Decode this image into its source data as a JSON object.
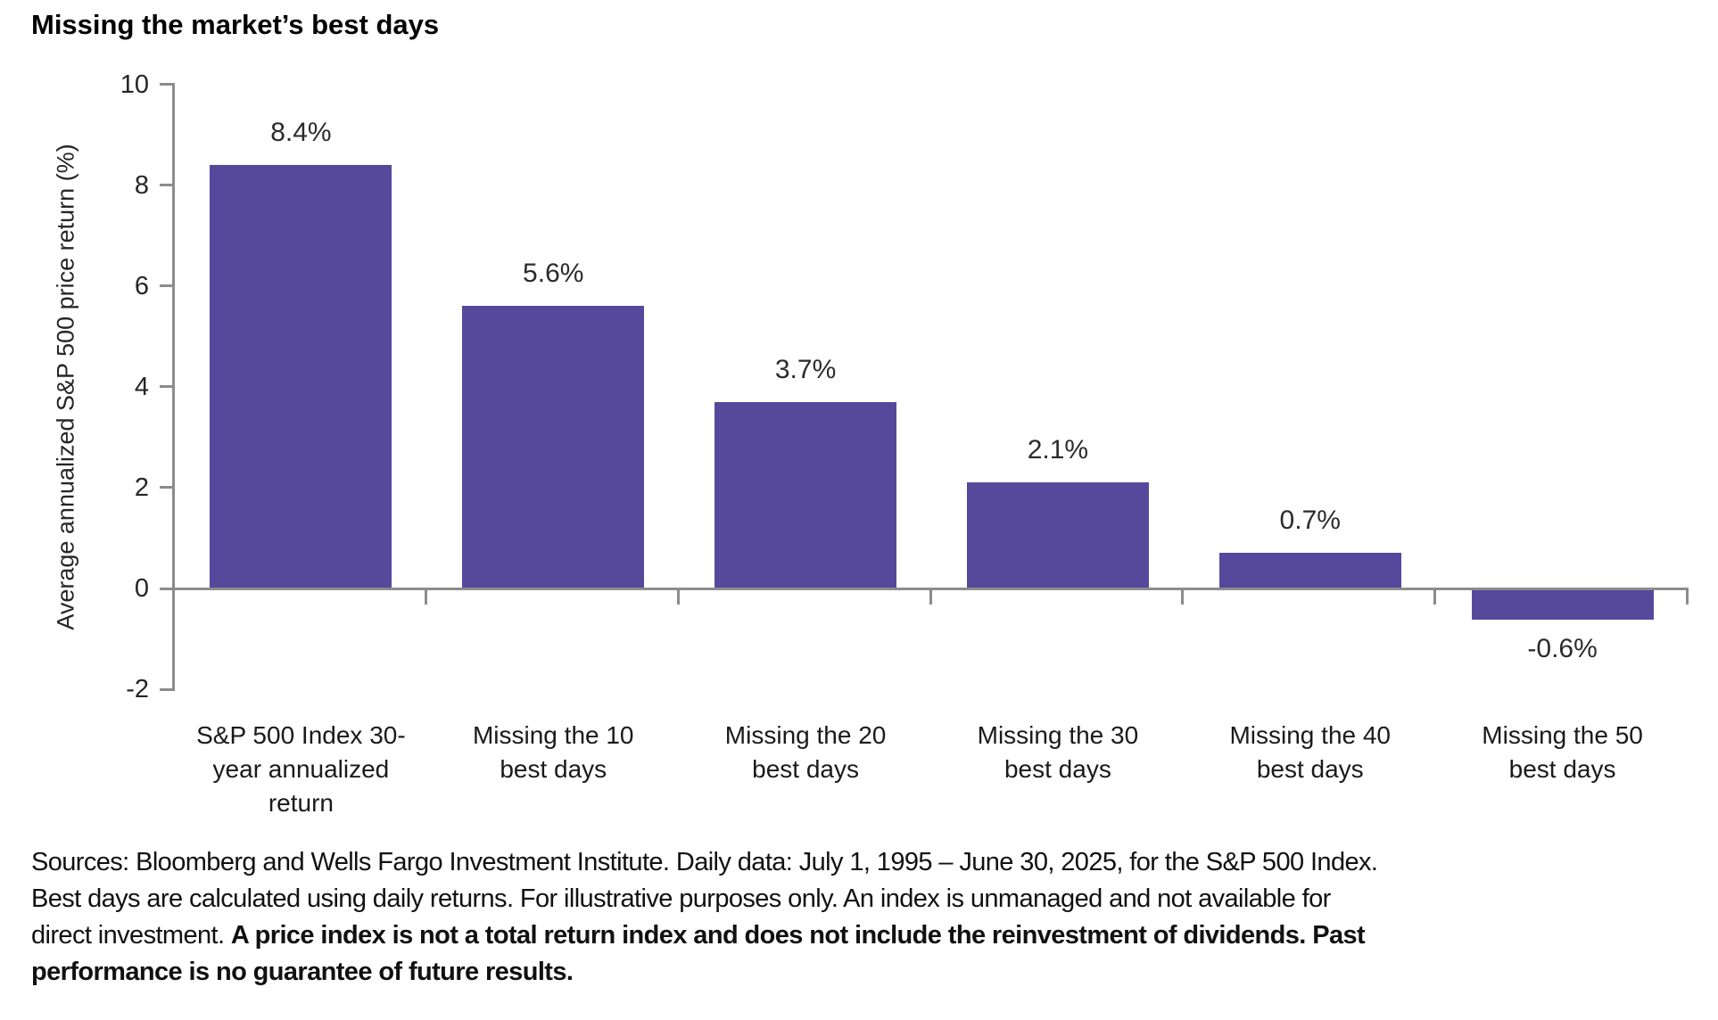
{
  "chart_data": {
    "type": "bar",
    "title": "Missing the market’s best days",
    "ylabel": "Average annualized S&P 500 price return (%)",
    "xlabel": "",
    "ylim": [
      -2,
      10
    ],
    "yticks": [
      10,
      8,
      6,
      4,
      2,
      0,
      -2
    ],
    "grid": false,
    "legend": "none",
    "bar_color": "#56499c",
    "axis_color": "#8c8c8c",
    "categories": [
      "S&P 500 Index 30-\nyear annualized\nreturn",
      "Missing the 10\nbest days",
      "Missing the 20\nbest days",
      "Missing the 30\nbest days",
      "Missing the 40\nbest days",
      "Missing the 50\nbest days"
    ],
    "values": [
      8.4,
      5.6,
      3.7,
      2.1,
      0.7,
      -0.6
    ],
    "value_labels": [
      "8.4%",
      "5.6%",
      "3.7%",
      "2.1%",
      "0.7%",
      "-0.6%"
    ]
  },
  "footer": {
    "regular": "Sources: Bloomberg and Wells Fargo Investment Institute. Daily data: July 1, 1995 – June 30, 2025, for the S&P 500 Index. Best days are calculated using daily returns. For illustrative purposes only. An index is unmanaged and not available for direct investment. ",
    "bold": "A price index is not a total return index and does not include the reinvestment of dividends. Past performance is no guarantee of future results."
  }
}
